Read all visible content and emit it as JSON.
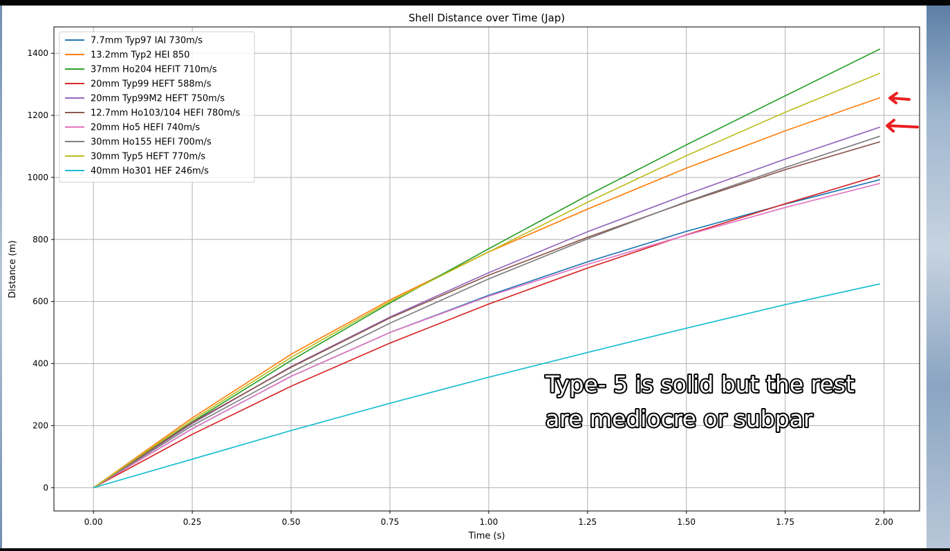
{
  "chart_data": {
    "type": "line",
    "title": "Shell Distance over Time (Jap)",
    "xlabel": "Time (s)",
    "ylabel": "Distance (m)",
    "xlim": [
      -0.1,
      2.09
    ],
    "ylim": [
      -75,
      1485
    ],
    "x_ticks": [
      0.0,
      0.25,
      0.5,
      0.75,
      1.0,
      1.25,
      1.5,
      1.75,
      2.0
    ],
    "x_tick_labels": [
      "0.00",
      "0.25",
      "0.50",
      "0.75",
      "1.00",
      "1.25",
      "1.50",
      "1.75",
      "2.00"
    ],
    "y_ticks": [
      0,
      200,
      400,
      600,
      800,
      1000,
      1200,
      1400
    ],
    "y_tick_labels": [
      "0",
      "200",
      "400",
      "600",
      "800",
      "1000",
      "1200",
      "1400"
    ],
    "grid": true,
    "legend_position": "top-left",
    "x": [
      0,
      0.25,
      0.5,
      0.75,
      1.0,
      1.25,
      1.5,
      1.75,
      1.99
    ],
    "series": [
      {
        "name": "7.7mm Typ97 IAI 730m/s",
        "color": "#1f77b4",
        "values": [
          0,
          190,
          359,
          500,
          620,
          728,
          826,
          914,
          993
        ]
      },
      {
        "name": "13.2mm Typ2 HEI 850",
        "color": "#ff7f0e",
        "values": [
          0,
          225,
          430,
          605,
          760,
          898,
          1030,
          1150,
          1257
        ]
      },
      {
        "name": "37mm Ho204 HEFIT 710m/s",
        "color": "#2ca02c",
        "values": [
          0,
          212,
          410,
          595,
          770,
          942,
          1105,
          1263,
          1414
        ]
      },
      {
        "name": "20mm Typ99 HEFT 588m/s",
        "color": "#d62728",
        "values": [
          0,
          172,
          327,
          466,
          592,
          708,
          815,
          915,
          1007
        ]
      },
      {
        "name": "20mm Typ99M2 HEFT 750m/s",
        "color": "#9467bd",
        "values": [
          0,
          207,
          390,
          550,
          693,
          825,
          945,
          1059,
          1162
        ]
      },
      {
        "name": "12.7mm Ho103/104 HEFI 780m/s",
        "color": "#8c564b",
        "values": [
          0,
          210,
          388,
          547,
          685,
          807,
          920,
          1025,
          1115
        ]
      },
      {
        "name": "20mm Ho5 HEFI 740m/s",
        "color": "#e377c2",
        "values": [
          0,
          190,
          359,
          500,
          617,
          720,
          814,
          903,
          981
        ]
      },
      {
        "name": "30mm Ho155 HEFI 700m/s",
        "color": "#7f7f7f",
        "values": [
          0,
          200,
          372,
          530,
          673,
          802,
          922,
          1032,
          1133
        ]
      },
      {
        "name": "30mm Typ5 HEFT 770m/s",
        "color": "#bcbd22",
        "values": [
          0,
          218,
          420,
          600,
          760,
          920,
          1070,
          1210,
          1336
        ]
      },
      {
        "name": "40mm Ho301 HEF 246m/s",
        "color": "#17becf",
        "values": [
          0,
          92,
          184,
          272,
          356,
          436,
          514,
          590,
          657
        ]
      }
    ],
    "annotations": [
      {
        "text": "Type- 5 is solid but the rest",
        "color": "#ffffff"
      },
      {
        "text": "are mediocre or subpar",
        "color": "#ffffff"
      }
    ],
    "arrow_color": "#e8201f"
  }
}
